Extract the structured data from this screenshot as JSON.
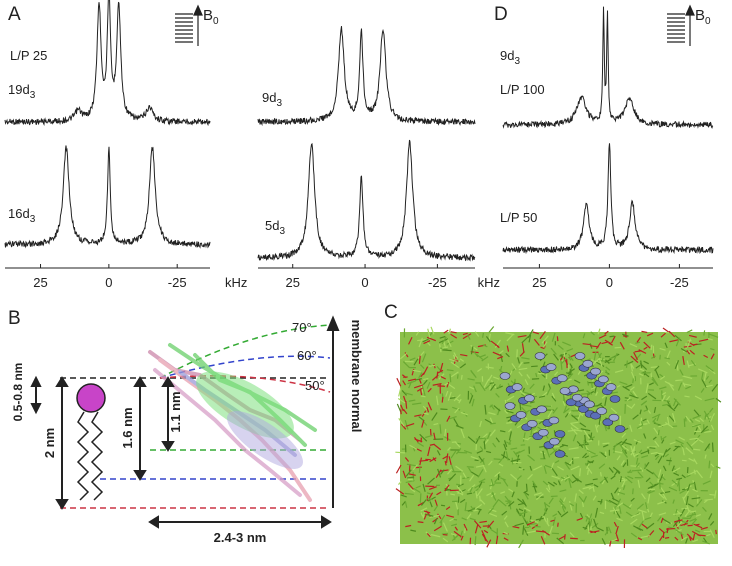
{
  "panels": {
    "A": {
      "label": "A",
      "b0": {
        "text": "B",
        "sub": "0"
      }
    },
    "D": {
      "label": "D",
      "b0": {
        "text": "B",
        "sub": "0"
      }
    },
    "B": {
      "label": "B",
      "thickness": "0.5-0.8 nm",
      "bilayer": "2 nm",
      "depth_large": "1.6 nm",
      "depth_small": "1.1 nm",
      "width": "2.4-3 nm",
      "normal": "membrane normal",
      "angles": [
        "70°",
        "60°",
        "50°"
      ]
    },
    "C": {
      "label": "C"
    }
  },
  "chart_data": [
    {
      "type": "spectrum",
      "labels": [
        "L/P 25",
        {
          "text": "19d",
          "sub": "3"
        }
      ],
      "xlim": [
        38,
        -37
      ],
      "x": [
        11.2,
        3.6,
        0,
        -3.6,
        -14.9
      ],
      "values": [
        10,
        114,
        120,
        114,
        14
      ]
    },
    {
      "type": "spectrum",
      "labels": [
        {
          "text": "16d",
          "sub": "3"
        }
      ],
      "xlim": [
        38,
        -37
      ],
      "xticks": [
        25,
        0,
        -25
      ],
      "xlabel": "kHz",
      "x": [
        15.6,
        0,
        -15.9
      ],
      "values": [
        97,
        95,
        97
      ]
    },
    {
      "type": "spectrum",
      "labels": [
        {
          "text": "9d",
          "sub": "3"
        }
      ],
      "xlim": [
        37,
        -38
      ],
      "x": [
        8.2,
        1.3,
        -6.2
      ],
      "values": [
        92,
        87,
        92
      ]
    },
    {
      "type": "spectrum",
      "labels": [
        {
          "text": "5d",
          "sub": "3"
        }
      ],
      "xlim": [
        37,
        -38
      ],
      "xticks": [
        25,
        0,
        -25
      ],
      "x": [
        18.5,
        1.3,
        -15.4
      ],
      "values": [
        115,
        80,
        115
      ]
    },
    {
      "type": "spectrum",
      "labels": [
        {
          "text": "9d",
          "sub": "3"
        },
        "L/P 100"
      ],
      "xlim": [
        38,
        -37
      ],
      "x": [
        10,
        2.1,
        0.7,
        -7.1
      ],
      "values": [
        27,
        110,
        110,
        25
      ]
    },
    {
      "type": "spectrum",
      "labels": [
        "L/P 50"
      ],
      "xlim": [
        38,
        -37
      ],
      "xticks": [
        25,
        0,
        -25
      ],
      "xlabel": "kHz",
      "x": [
        8.2,
        0,
        -8.2
      ],
      "values": [
        45,
        107,
        47
      ]
    }
  ]
}
